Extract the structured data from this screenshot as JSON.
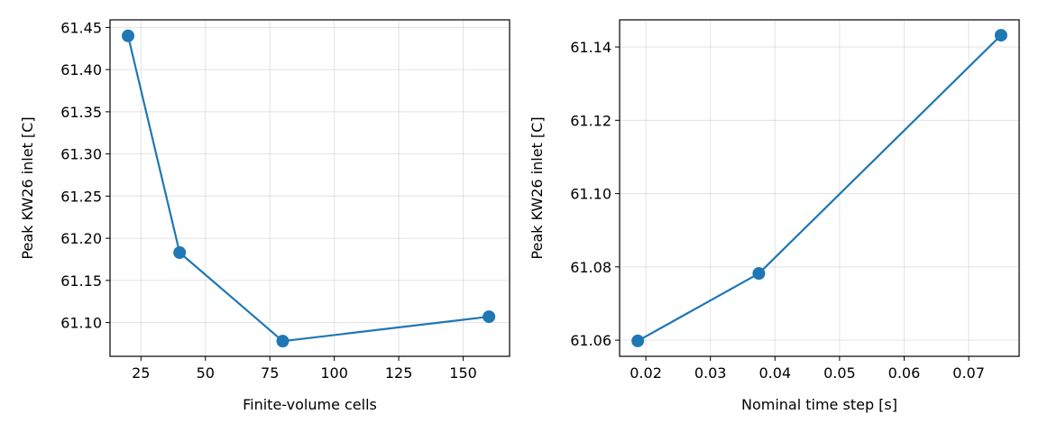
{
  "chart_data": [
    {
      "type": "line",
      "xlabel": "Finite-volume cells",
      "ylabel": "Peak KW26 inlet [C]",
      "x": [
        20,
        40,
        80,
        160
      ],
      "series": [
        {
          "values": [
            61.44,
            61.183,
            61.078,
            61.107
          ]
        }
      ],
      "xlim": [
        13,
        168
      ],
      "ylim": [
        61.06,
        61.459
      ],
      "xticks": [
        25,
        50,
        75,
        100,
        125,
        150
      ],
      "xtick_labels": [
        "25",
        "50",
        "75",
        "100",
        "125",
        "150"
      ],
      "yticks": [
        61.1,
        61.15,
        61.2,
        61.25,
        61.3,
        61.35,
        61.4,
        61.45
      ],
      "ytick_labels": [
        "61.10",
        "61.15",
        "61.20",
        "61.25",
        "61.30",
        "61.35",
        "61.40",
        "61.45"
      ],
      "grid": true,
      "color": "#1f77b4",
      "marker": "circle"
    },
    {
      "type": "line",
      "xlabel": "Nominal time step [s]",
      "ylabel": "Peak KW26 inlet [C]",
      "x": [
        0.01875,
        0.0375,
        0.075
      ],
      "series": [
        {
          "values": [
            61.0598,
            61.0782,
            61.1432
          ]
        }
      ],
      "xlim": [
        0.01594,
        0.07781
      ],
      "ylim": [
        61.0556,
        61.1474
      ],
      "xticks": [
        0.02,
        0.03,
        0.04,
        0.05,
        0.06,
        0.07
      ],
      "xtick_labels": [
        "0.02",
        "0.03",
        "0.04",
        "0.05",
        "0.06",
        "0.07"
      ],
      "yticks": [
        61.06,
        61.08,
        61.1,
        61.12,
        61.14
      ],
      "ytick_labels": [
        "61.06",
        "61.08",
        "61.10",
        "61.12",
        "61.14"
      ],
      "grid": true,
      "color": "#1f77b4",
      "marker": "circle"
    }
  ]
}
